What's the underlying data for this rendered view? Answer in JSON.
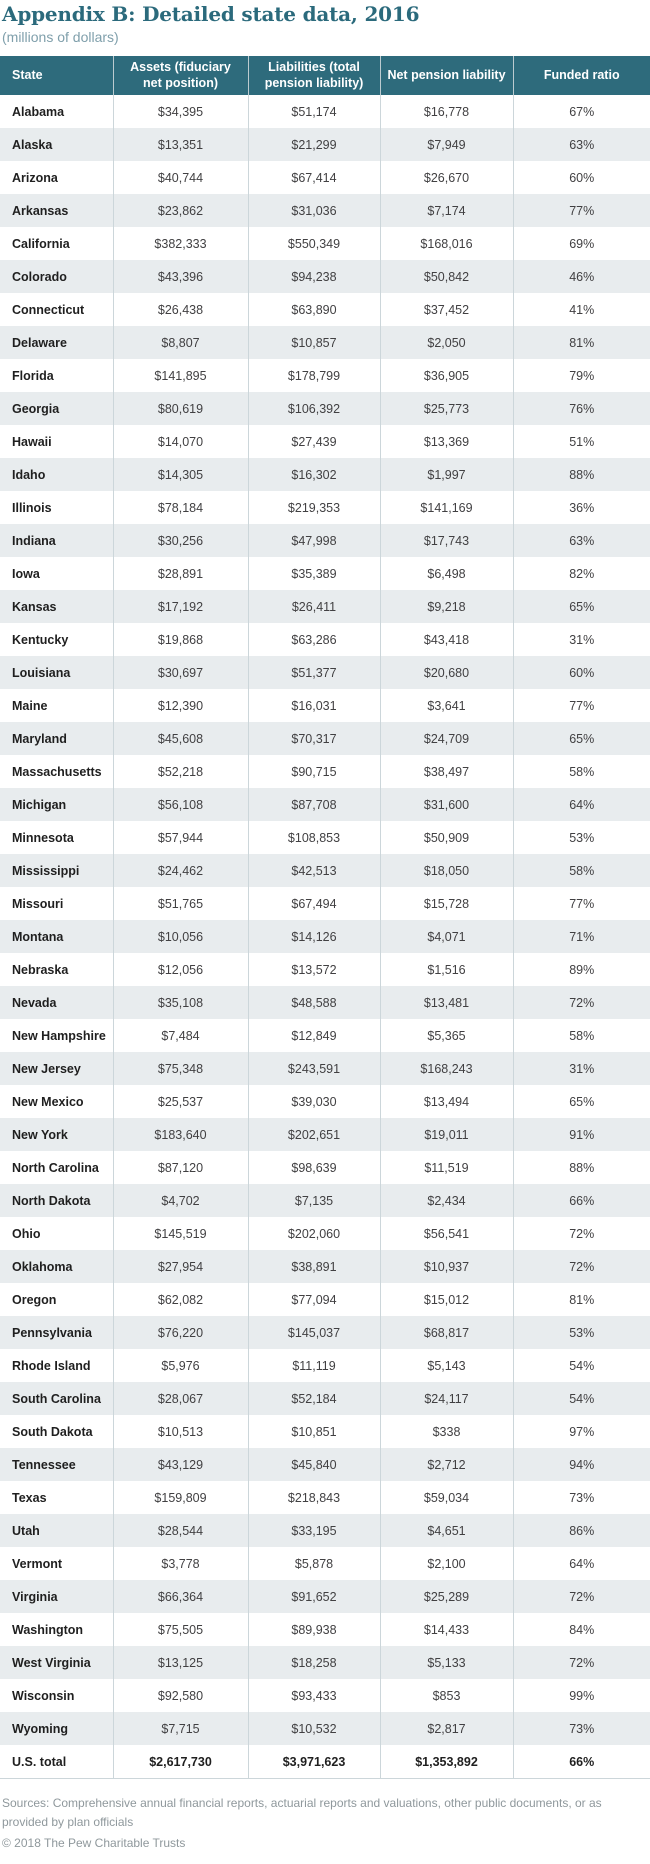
{
  "page": {
    "title": "Appendix B: Detailed state data, 2016",
    "subtitle": "(millions of dollars)"
  },
  "colors": {
    "header_bg": "#2e6b7c",
    "title_text": "#2b6a7c",
    "subtitle_text": "#7f9fab",
    "alt_row_bg": "#e8ecee",
    "grid_border": "#ccd6da",
    "footer_text": "#8f989c"
  },
  "table": {
    "columns": [
      "State",
      "Assets (fiduciary net position)",
      "Liabilities (total pension liability)",
      "Net pension liability",
      "Funded ratio"
    ],
    "rows": [
      {
        "state": "Alabama",
        "assets": "$34,395",
        "liabilities": "$51,174",
        "net_pension_liability": "$16,778",
        "funded_ratio": "67%"
      },
      {
        "state": "Alaska",
        "assets": "$13,351",
        "liabilities": "$21,299",
        "net_pension_liability": "$7,949",
        "funded_ratio": "63%"
      },
      {
        "state": "Arizona",
        "assets": "$40,744",
        "liabilities": "$67,414",
        "net_pension_liability": "$26,670",
        "funded_ratio": "60%"
      },
      {
        "state": "Arkansas",
        "assets": "$23,862",
        "liabilities": "$31,036",
        "net_pension_liability": "$7,174",
        "funded_ratio": "77%"
      },
      {
        "state": "California",
        "assets": "$382,333",
        "liabilities": "$550,349",
        "net_pension_liability": "$168,016",
        "funded_ratio": "69%"
      },
      {
        "state": "Colorado",
        "assets": "$43,396",
        "liabilities": "$94,238",
        "net_pension_liability": "$50,842",
        "funded_ratio": "46%"
      },
      {
        "state": "Connecticut",
        "assets": "$26,438",
        "liabilities": "$63,890",
        "net_pension_liability": "$37,452",
        "funded_ratio": "41%"
      },
      {
        "state": "Delaware",
        "assets": "$8,807",
        "liabilities": "$10,857",
        "net_pension_liability": "$2,050",
        "funded_ratio": "81%"
      },
      {
        "state": "Florida",
        "assets": "$141,895",
        "liabilities": "$178,799",
        "net_pension_liability": "$36,905",
        "funded_ratio": "79%"
      },
      {
        "state": "Georgia",
        "assets": "$80,619",
        "liabilities": "$106,392",
        "net_pension_liability": "$25,773",
        "funded_ratio": "76%"
      },
      {
        "state": "Hawaii",
        "assets": "$14,070",
        "liabilities": "$27,439",
        "net_pension_liability": "$13,369",
        "funded_ratio": "51%"
      },
      {
        "state": "Idaho",
        "assets": "$14,305",
        "liabilities": "$16,302",
        "net_pension_liability": "$1,997",
        "funded_ratio": "88%"
      },
      {
        "state": "Illinois",
        "assets": "$78,184",
        "liabilities": "$219,353",
        "net_pension_liability": "$141,169",
        "funded_ratio": "36%"
      },
      {
        "state": "Indiana",
        "assets": "$30,256",
        "liabilities": "$47,998",
        "net_pension_liability": "$17,743",
        "funded_ratio": "63%"
      },
      {
        "state": "Iowa",
        "assets": "$28,891",
        "liabilities": "$35,389",
        "net_pension_liability": "$6,498",
        "funded_ratio": "82%"
      },
      {
        "state": "Kansas",
        "assets": "$17,192",
        "liabilities": "$26,411",
        "net_pension_liability": "$9,218",
        "funded_ratio": "65%"
      },
      {
        "state": "Kentucky",
        "assets": "$19,868",
        "liabilities": "$63,286",
        "net_pension_liability": "$43,418",
        "funded_ratio": "31%"
      },
      {
        "state": "Louisiana",
        "assets": "$30,697",
        "liabilities": "$51,377",
        "net_pension_liability": "$20,680",
        "funded_ratio": "60%"
      },
      {
        "state": "Maine",
        "assets": "$12,390",
        "liabilities": "$16,031",
        "net_pension_liability": "$3,641",
        "funded_ratio": "77%"
      },
      {
        "state": "Maryland",
        "assets": "$45,608",
        "liabilities": "$70,317",
        "net_pension_liability": "$24,709",
        "funded_ratio": "65%"
      },
      {
        "state": "Massachusetts",
        "assets": "$52,218",
        "liabilities": "$90,715",
        "net_pension_liability": "$38,497",
        "funded_ratio": "58%"
      },
      {
        "state": "Michigan",
        "assets": "$56,108",
        "liabilities": "$87,708",
        "net_pension_liability": "$31,600",
        "funded_ratio": "64%"
      },
      {
        "state": "Minnesota",
        "assets": "$57,944",
        "liabilities": "$108,853",
        "net_pension_liability": "$50,909",
        "funded_ratio": "53%"
      },
      {
        "state": "Mississippi",
        "assets": "$24,462",
        "liabilities": "$42,513",
        "net_pension_liability": "$18,050",
        "funded_ratio": "58%"
      },
      {
        "state": "Missouri",
        "assets": "$51,765",
        "liabilities": "$67,494",
        "net_pension_liability": "$15,728",
        "funded_ratio": "77%"
      },
      {
        "state": "Montana",
        "assets": "$10,056",
        "liabilities": "$14,126",
        "net_pension_liability": "$4,071",
        "funded_ratio": "71%"
      },
      {
        "state": "Nebraska",
        "assets": "$12,056",
        "liabilities": "$13,572",
        "net_pension_liability": "$1,516",
        "funded_ratio": "89%"
      },
      {
        "state": "Nevada",
        "assets": "$35,108",
        "liabilities": "$48,588",
        "net_pension_liability": "$13,481",
        "funded_ratio": "72%"
      },
      {
        "state": "New Hampshire",
        "assets": "$7,484",
        "liabilities": "$12,849",
        "net_pension_liability": "$5,365",
        "funded_ratio": "58%"
      },
      {
        "state": "New Jersey",
        "assets": "$75,348",
        "liabilities": "$243,591",
        "net_pension_liability": "$168,243",
        "funded_ratio": "31%"
      },
      {
        "state": "New Mexico",
        "assets": "$25,537",
        "liabilities": "$39,030",
        "net_pension_liability": "$13,494",
        "funded_ratio": "65%"
      },
      {
        "state": "New York",
        "assets": "$183,640",
        "liabilities": "$202,651",
        "net_pension_liability": "$19,011",
        "funded_ratio": "91%"
      },
      {
        "state": "North Carolina",
        "assets": "$87,120",
        "liabilities": "$98,639",
        "net_pension_liability": "$11,519",
        "funded_ratio": "88%"
      },
      {
        "state": "North Dakota",
        "assets": "$4,702",
        "liabilities": "$7,135",
        "net_pension_liability": "$2,434",
        "funded_ratio": "66%"
      },
      {
        "state": "Ohio",
        "assets": "$145,519",
        "liabilities": "$202,060",
        "net_pension_liability": "$56,541",
        "funded_ratio": "72%"
      },
      {
        "state": "Oklahoma",
        "assets": "$27,954",
        "liabilities": "$38,891",
        "net_pension_liability": "$10,937",
        "funded_ratio": "72%"
      },
      {
        "state": "Oregon",
        "assets": "$62,082",
        "liabilities": "$77,094",
        "net_pension_liability": "$15,012",
        "funded_ratio": "81%"
      },
      {
        "state": "Pennsylvania",
        "assets": "$76,220",
        "liabilities": "$145,037",
        "net_pension_liability": "$68,817",
        "funded_ratio": "53%"
      },
      {
        "state": "Rhode Island",
        "assets": "$5,976",
        "liabilities": "$11,119",
        "net_pension_liability": "$5,143",
        "funded_ratio": "54%"
      },
      {
        "state": "South Carolina",
        "assets": "$28,067",
        "liabilities": "$52,184",
        "net_pension_liability": "$24,117",
        "funded_ratio": "54%"
      },
      {
        "state": "South Dakota",
        "assets": "$10,513",
        "liabilities": "$10,851",
        "net_pension_liability": "$338",
        "funded_ratio": "97%"
      },
      {
        "state": "Tennessee",
        "assets": "$43,129",
        "liabilities": "$45,840",
        "net_pension_liability": "$2,712",
        "funded_ratio": "94%"
      },
      {
        "state": "Texas",
        "assets": "$159,809",
        "liabilities": "$218,843",
        "net_pension_liability": "$59,034",
        "funded_ratio": "73%"
      },
      {
        "state": "Utah",
        "assets": "$28,544",
        "liabilities": "$33,195",
        "net_pension_liability": "$4,651",
        "funded_ratio": "86%"
      },
      {
        "state": "Vermont",
        "assets": "$3,778",
        "liabilities": "$5,878",
        "net_pension_liability": "$2,100",
        "funded_ratio": "64%"
      },
      {
        "state": "Virginia",
        "assets": "$66,364",
        "liabilities": "$91,652",
        "net_pension_liability": "$25,289",
        "funded_ratio": "72%"
      },
      {
        "state": "Washington",
        "assets": "$75,505",
        "liabilities": "$89,938",
        "net_pension_liability": "$14,433",
        "funded_ratio": "84%"
      },
      {
        "state": "West Virginia",
        "assets": "$13,125",
        "liabilities": "$18,258",
        "net_pension_liability": "$5,133",
        "funded_ratio": "72%"
      },
      {
        "state": "Wisconsin",
        "assets": "$92,580",
        "liabilities": "$93,433",
        "net_pension_liability": "$853",
        "funded_ratio": "99%"
      },
      {
        "state": "Wyoming",
        "assets": "$7,715",
        "liabilities": "$10,532",
        "net_pension_liability": "$2,817",
        "funded_ratio": "73%"
      }
    ],
    "total_row": {
      "state": "U.S. total",
      "assets": "$2,617,730",
      "liabilities": "$3,971,623",
      "net_pension_liability": "$1,353,892",
      "funded_ratio": "66%"
    }
  },
  "footer": {
    "sources": "Sources: Comprehensive annual financial reports, actuarial reports and valuations, other public documents, or as provided by plan officials",
    "copyright": "© 2018 The Pew Charitable Trusts"
  }
}
